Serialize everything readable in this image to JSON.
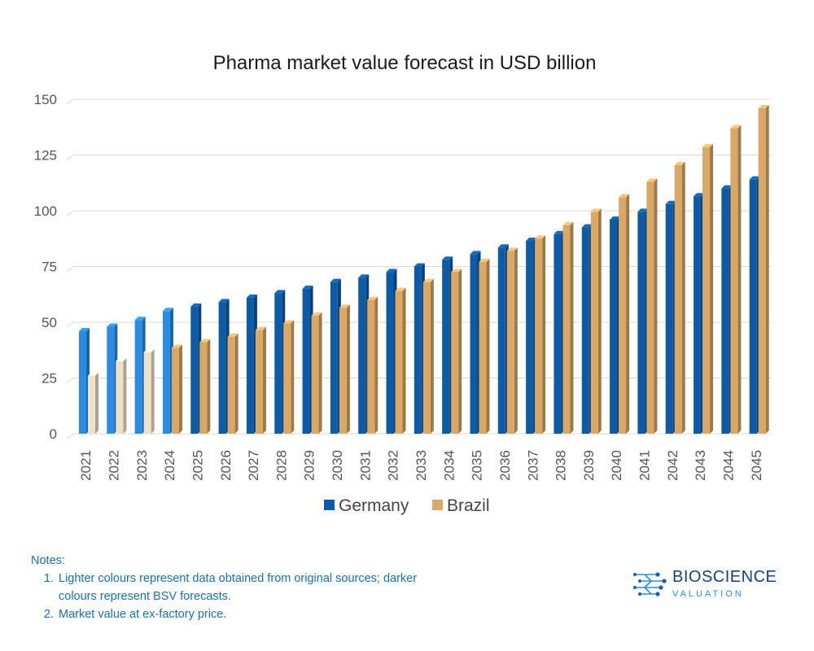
{
  "chart_data": {
    "type": "bar",
    "title": "Pharma market value forecast in USD billion",
    "categories": [
      "2021",
      "2022",
      "2023",
      "2024",
      "2025",
      "2026",
      "2027",
      "2028",
      "2029",
      "2030",
      "2031",
      "2032",
      "2033",
      "2034",
      "2035",
      "2036",
      "2037",
      "2038",
      "2039",
      "2040",
      "2041",
      "2042",
      "2043",
      "2044",
      "2045"
    ],
    "series": [
      {
        "name": "Germany",
        "values": [
          46,
          48,
          51,
          55,
          57,
          59,
          61,
          63,
          65,
          68,
          70,
          72.5,
          75,
          78,
          80.5,
          83.5,
          86.5,
          89.5,
          92.5,
          96,
          99.5,
          103,
          106.5,
          110,
          114
        ],
        "color_forecast": "#0d5aa7",
        "color_source": "#2b8ce6"
      },
      {
        "name": "Brazil",
        "values": [
          26,
          32.5,
          36.5,
          38.5,
          41,
          43.5,
          46.5,
          49.5,
          53,
          56.5,
          60,
          64,
          68,
          72.5,
          77,
          82,
          87.5,
          93.5,
          99.5,
          106,
          113,
          120.5,
          128.5,
          137,
          146
        ],
        "color_forecast": "#d9a865",
        "color_source": "#efe1c8"
      }
    ],
    "source_data_years": [
      "2021",
      "2022",
      "2023",
      "2024"
    ],
    "source_data_years_brazil": [
      "2021",
      "2022",
      "2023"
    ],
    "ylim": [
      0,
      150
    ],
    "yticks": [
      0,
      25,
      50,
      75,
      100,
      125,
      150
    ],
    "grid": true,
    "legend_position": "bottom",
    "bar_style": "3d"
  },
  "legend": {
    "germany": "Germany",
    "brazil": "Brazil"
  },
  "notes": {
    "heading": "Notes:",
    "items": [
      "Lighter colours represent data obtained from original sources; darker colours represent BSV forecasts.",
      "Market value at ex-factory price."
    ]
  },
  "logo": {
    "main": "BIOSCIENCE",
    "sub": "VALUATION"
  }
}
